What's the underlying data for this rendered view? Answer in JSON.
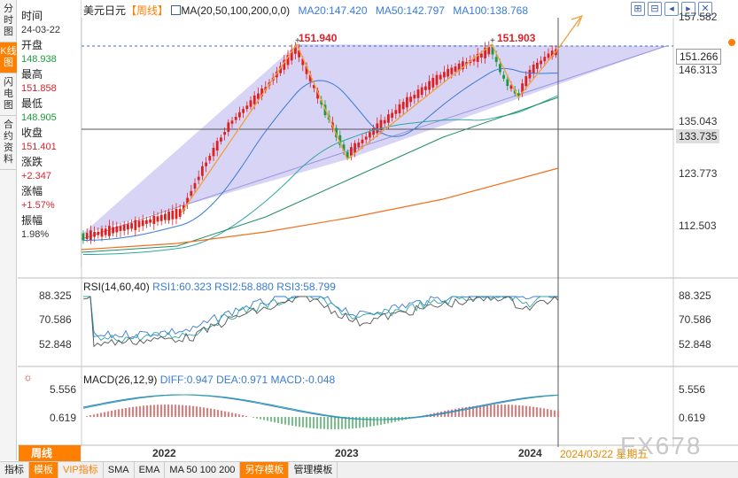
{
  "left_tabs": [
    "分时图",
    "K线图",
    "闪电图",
    "合约资料"
  ],
  "info": {
    "time_label": "时间",
    "time": "24-03-22",
    "open_label": "开盘",
    "open": "148.938",
    "high_label": "最高",
    "high": "151.858",
    "low_label": "最低",
    "low": "148.905",
    "close_label": "收盘",
    "close": "151.401",
    "change_label": "涨跌",
    "change": "+2.347",
    "pct_label": "涨幅",
    "pct": "+1.57%",
    "amp_label": "振幅",
    "amp": "1.98%"
  },
  "header": {
    "symbol": "美元日元",
    "period_tag": "【周线】",
    "ma": "MA(20,50,100,200,0,0)",
    "ma20": "MA20:147.420",
    "ma50": "MA50:142.797",
    "ma100": "MA100:138.768"
  },
  "price_axis": [
    "157.582",
    "146.313",
    "135.043",
    "123.773",
    "112.503"
  ],
  "price_tags": {
    "current": "151.266",
    "cursor": "133.735"
  },
  "peaks": {
    "left": "151.940",
    "right": "151.903"
  },
  "rsi": {
    "header": "RSI(14,60,40)",
    "rsi1": "RSI1:60.323",
    "rsi2": "RSI2:58.880",
    "rsi3": "RSI3:58.799",
    "axis": [
      "88.325",
      "70.586",
      "52.848"
    ]
  },
  "macd": {
    "header": "MACD(26,12,9)",
    "diff": "DIFF:0.947",
    "dea": "DEA:0.971",
    "macd": "MACD:-0.048",
    "axis": [
      "5.556",
      "0.619"
    ]
  },
  "x_axis": [
    "2022",
    "2023",
    "2024"
  ],
  "period": "周线",
  "cursor_date": "2024/03/22 星期五",
  "watermark": "FX678",
  "bottom_tabs": [
    "指标",
    "模板",
    "VIP指标",
    "SMA",
    "EMA",
    "MA 50 100 200",
    "另存模板",
    "管理模板"
  ],
  "colors": {
    "up": "#e02020",
    "down": "#1a9a3a",
    "ma20": "#3a7bd5",
    "ma50": "#2fa6a0",
    "ma100": "#1f8f5f",
    "ma200": "#f07020",
    "accent": "#ff7f00"
  }
}
